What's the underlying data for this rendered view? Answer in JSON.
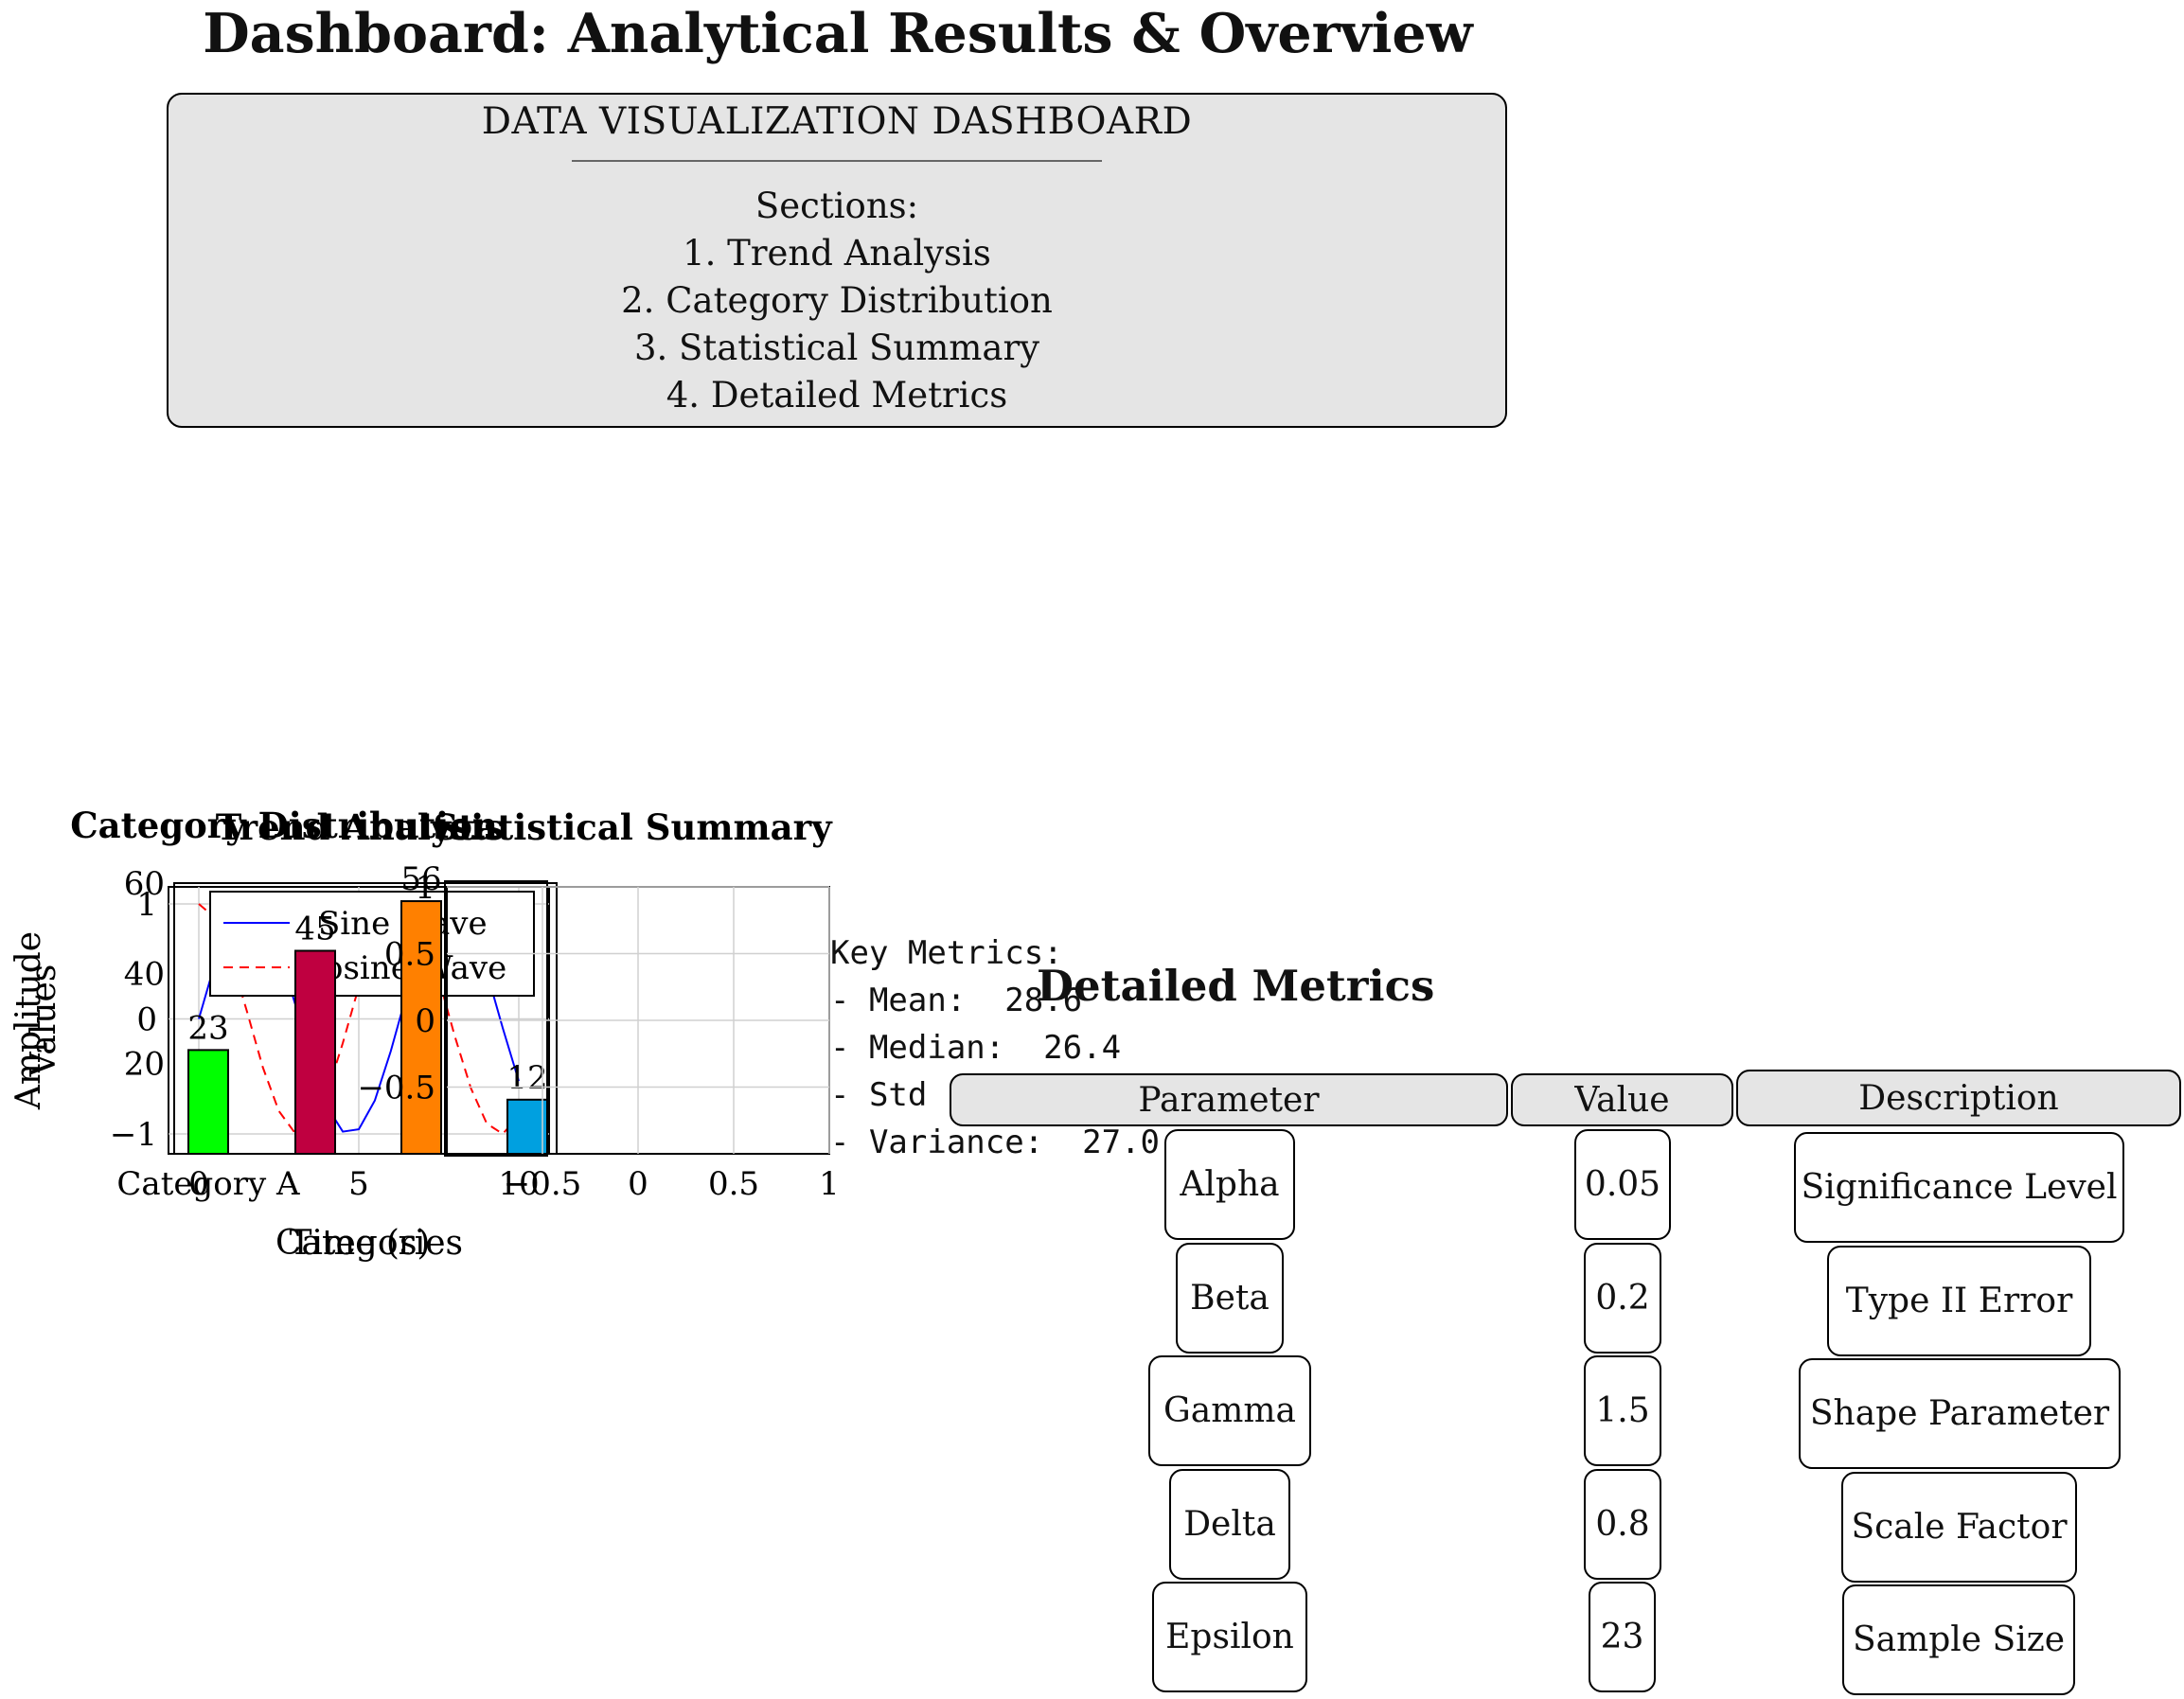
{
  "page_title": "Dashboard: Analytical Results & Overview",
  "overview": {
    "title": "DATA VISUALIZATION DASHBOARD",
    "sections_label": "Sections:",
    "sections": [
      "1. Trend Analysis",
      "2. Category Distribution",
      "3. Statistical Summary",
      "4. Detailed Metrics"
    ]
  },
  "key_metrics": {
    "heading": "Key Metrics:",
    "lines": [
      "- Mean:  28.6",
      "- Median:  26.4",
      "- Std",
      "- Variance:  27.0"
    ]
  },
  "detailed_metrics": {
    "title": "Detailed Metrics",
    "headers": [
      "Parameter",
      "Value",
      "Description"
    ],
    "rows": [
      [
        "Alpha",
        "0.05",
        "Significance Level"
      ],
      [
        "Beta",
        "0.2",
        "Type II Error"
      ],
      [
        "Gamma",
        "1.5",
        "Shape Parameter"
      ],
      [
        "Delta",
        "0.8",
        "Scale Factor"
      ],
      [
        "Epsilon",
        "23",
        "Sample Size"
      ]
    ]
  },
  "chart_data": [
    {
      "type": "line",
      "title": "Trend Analysis",
      "xlabel": "Time (s)",
      "ylabel": "Amplitude",
      "xlim": [
        0,
        10
      ],
      "ylim": [
        -1,
        1
      ],
      "xticks": [
        "0",
        "5",
        "10"
      ],
      "yticks": [
        "−1",
        "0",
        "1"
      ],
      "grid": true,
      "legend": "top-right",
      "series": [
        {
          "name": "Sine Wave",
          "color": "#0000ff",
          "style": "solid",
          "x": [
            0,
            0.5,
            1,
            1.5,
            2,
            2.5,
            3,
            3.5,
            4,
            4.5,
            5,
            5.5,
            6,
            6.5,
            7,
            7.5,
            8,
            8.5,
            9,
            9.5,
            10
          ],
          "y": [
            0,
            0.48,
            0.84,
            1.0,
            0.91,
            0.6,
            0.14,
            -0.35,
            -0.76,
            -0.98,
            -0.96,
            -0.71,
            -0.28,
            0.22,
            0.66,
            0.94,
            0.99,
            0.8,
            0.41,
            -0.08,
            -0.54
          ]
        },
        {
          "name": "Cosine Wave",
          "color": "#ff0000",
          "style": "dashed",
          "x": [
            0,
            0.5,
            1,
            1.5,
            2,
            2.5,
            3,
            3.5,
            4,
            4.5,
            5,
            5.5,
            6,
            6.5,
            7,
            7.5,
            8,
            8.5,
            9,
            9.5,
            10
          ],
          "y": [
            1,
            0.88,
            0.54,
            0.07,
            -0.42,
            -0.8,
            -0.99,
            -0.94,
            -0.65,
            -0.21,
            0.28,
            0.71,
            0.96,
            0.98,
            0.75,
            0.35,
            -0.15,
            -0.6,
            -0.91,
            -1.0,
            -0.84
          ]
        }
      ]
    },
    {
      "type": "bar",
      "title": "Category Distribution",
      "xlabel": "Categories",
      "ylabel": "Values",
      "ylim": [
        0,
        60
      ],
      "yticks": [
        "20",
        "40",
        "60"
      ],
      "categories": [
        "Category A",
        "",
        "",
        ""
      ],
      "values": [
        23,
        45,
        56,
        12
      ],
      "colors": [
        "#00ff00",
        "#bf0040",
        "#ff8000",
        "#00a0e0"
      ]
    },
    {
      "type": "line",
      "title": "Statistical Summary",
      "xlim": [
        -1,
        1
      ],
      "ylim": [
        -1,
        1
      ],
      "xticks": [
        "−0.5",
        "0",
        "0.5",
        "1"
      ],
      "yticks": [
        "−0.5",
        "0",
        "0.5",
        "1"
      ],
      "grid": true,
      "series": []
    }
  ]
}
